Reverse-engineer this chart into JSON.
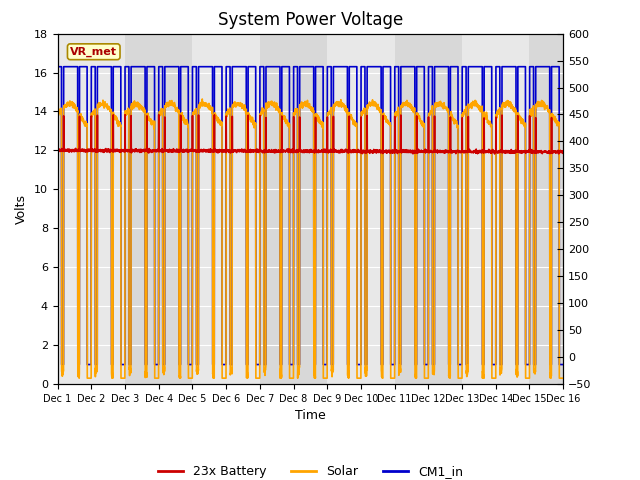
{
  "title": "System Power Voltage",
  "xlabel": "Time",
  "ylabel": "Volts",
  "ylim_left": [
    0,
    18
  ],
  "ylim_right": [
    -50,
    600
  ],
  "yticks_left": [
    0,
    2,
    4,
    6,
    8,
    10,
    12,
    14,
    16,
    18
  ],
  "yticks_right": [
    -50,
    0,
    50,
    100,
    150,
    200,
    250,
    300,
    350,
    400,
    450,
    500,
    550,
    600
  ],
  "xtick_labels": [
    "Dec 1",
    "Dec 2",
    "Dec 3",
    "Dec 4",
    "Dec 5",
    "Dec 6",
    "Dec 7",
    "Dec 8",
    "Dec 9",
    "Dec 10",
    "Dec 11",
    "Dec 12",
    "Dec 13",
    "Dec 14",
    "Dec 15",
    "Dec 16"
  ],
  "n_days": 15,
  "background_color": "#ffffff",
  "plot_bg_color": "#d8d8d8",
  "plot_bg_light": "#e8e8e8",
  "grid_color": "#ffffff",
  "colors": {
    "battery": "#cc0000",
    "solar": "#ffa500",
    "cm1": "#0000cc"
  },
  "legend_labels": [
    "23x Battery",
    "Solar",
    "CM1_in"
  ],
  "vr_met_box_color": "#ffffcc",
  "vr_met_border_color": "#aa8800",
  "vr_met_text_color": "#aa0000",
  "title_fontsize": 12,
  "axis_label_fontsize": 9,
  "tick_fontsize": 8,
  "line_width": 1.2
}
